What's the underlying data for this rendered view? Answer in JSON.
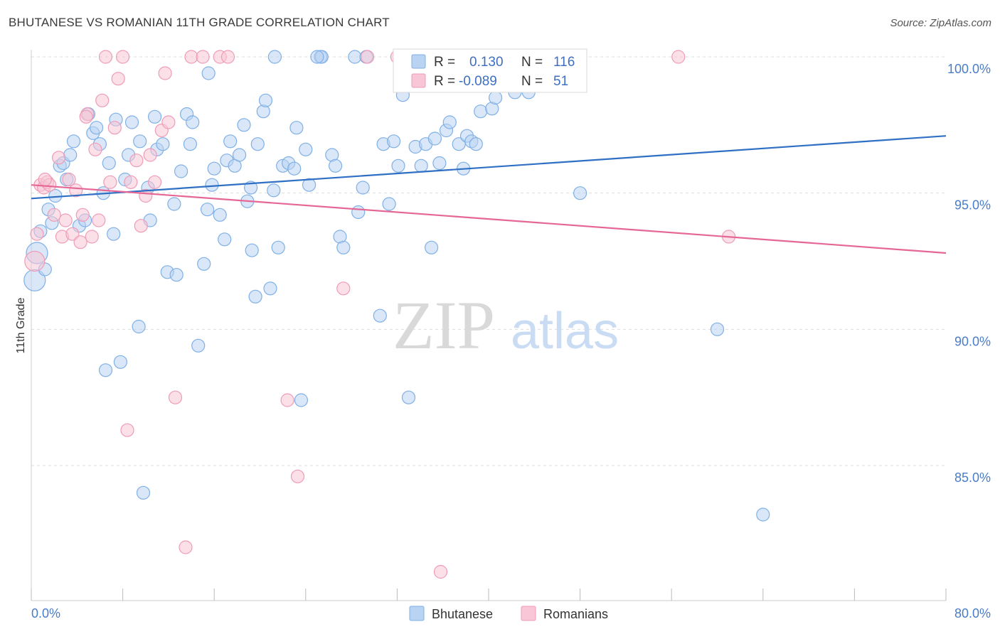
{
  "title": "BHUTANESE VS ROMANIAN 11TH GRADE CORRELATION CHART",
  "source": "Source: ZipAtlas.com",
  "watermark": {
    "zip": "ZIP",
    "atlas": "atlas"
  },
  "colors": {
    "blue": "#7fb0e6",
    "blue_fill": "#b9d3f2",
    "blue_line": "#2f6fc4",
    "pink": "#ef9bb8",
    "pink_fill": "#f8c6d6",
    "pink_line": "#e56795",
    "grid": "#dddddd",
    "tick_text": "#4a7cc7"
  },
  "legend": {
    "row1": {
      "r_label": "R =",
      "r_value": "0.130",
      "n_label": "N =",
      "n_value": "116"
    },
    "row2": {
      "r_label": "R =",
      "r_value": "-0.089",
      "n_label": "N =",
      "n_value": "51"
    }
  },
  "bottom_legend": [
    "Bhutanese",
    "Romanians"
  ],
  "chart_data": {
    "type": "scatter",
    "title": "BHUTANESE VS ROMANIAN 11TH GRADE CORRELATION CHART",
    "xlabel": "",
    "ylabel": "11th Grade",
    "xlim": [
      0,
      80
    ],
    "ylim": [
      80.5,
      101
    ],
    "x_tick_labels": [
      "0.0%",
      "80.0%"
    ],
    "y_ticks": [
      85,
      90,
      95,
      100
    ],
    "y_tick_labels": [
      "85.0%",
      "90.0%",
      "95.0%",
      "100.0%"
    ],
    "grid": true,
    "series": [
      {
        "name": "Bhutanese",
        "r": 0.13,
        "n": 116,
        "trend": [
          [
            0,
            94.8
          ],
          [
            80,
            97.1
          ]
        ],
        "points": [
          [
            0.3,
            91.8
          ],
          [
            0.5,
            92.8
          ],
          [
            0.8,
            93.6
          ],
          [
            1.2,
            92.2
          ],
          [
            1.5,
            94.4
          ],
          [
            1.8,
            93.9
          ],
          [
            2.1,
            94.9
          ],
          [
            2.5,
            96.0
          ],
          [
            2.8,
            96.1
          ],
          [
            3.1,
            95.5
          ],
          [
            3.4,
            96.4
          ],
          [
            3.7,
            96.9
          ],
          [
            4.2,
            93.8
          ],
          [
            4.7,
            94.0
          ],
          [
            5.0,
            97.9
          ],
          [
            5.4,
            97.2
          ],
          [
            5.7,
            97.4
          ],
          [
            6.0,
            96.8
          ],
          [
            6.3,
            95.0
          ],
          [
            6.8,
            96.1
          ],
          [
            7.2,
            93.5
          ],
          [
            7.4,
            97.7
          ],
          [
            8.2,
            95.5
          ],
          [
            8.5,
            96.4
          ],
          [
            8.8,
            97.6
          ],
          [
            9.5,
            96.9
          ],
          [
            10.2,
            95.2
          ],
          [
            10.4,
            94.0
          ],
          [
            10.8,
            97.8
          ],
          [
            11.0,
            96.6
          ],
          [
            11.5,
            96.8
          ],
          [
            11.9,
            92.1
          ],
          [
            12.5,
            94.6
          ],
          [
            12.7,
            92.0
          ],
          [
            13.1,
            95.8
          ],
          [
            13.6,
            97.9
          ],
          [
            13.9,
            96.8
          ],
          [
            14.1,
            97.6
          ],
          [
            14.6,
            89.4
          ],
          [
            15.1,
            92.4
          ],
          [
            15.4,
            94.4
          ],
          [
            15.5,
            99.4
          ],
          [
            15.8,
            95.3
          ],
          [
            16.0,
            95.9
          ],
          [
            16.5,
            94.2
          ],
          [
            16.9,
            93.3
          ],
          [
            17.1,
            96.2
          ],
          [
            17.4,
            96.9
          ],
          [
            17.8,
            96.0
          ],
          [
            18.2,
            96.4
          ],
          [
            18.6,
            97.5
          ],
          [
            18.9,
            94.7
          ],
          [
            19.2,
            95.2
          ],
          [
            19.3,
            92.9
          ],
          [
            19.6,
            91.2
          ],
          [
            19.8,
            96.8
          ],
          [
            20.3,
            98.0
          ],
          [
            20.5,
            98.4
          ],
          [
            20.9,
            91.5
          ],
          [
            21.2,
            95.1
          ],
          [
            21.6,
            93.0
          ],
          [
            22.0,
            96.0
          ],
          [
            22.5,
            96.1
          ],
          [
            23.0,
            95.9
          ],
          [
            23.2,
            97.4
          ],
          [
            23.6,
            87.4
          ],
          [
            24.0,
            96.6
          ],
          [
            24.3,
            95.3
          ],
          [
            25.3,
            100.0
          ],
          [
            25.4,
            100.0
          ],
          [
            26.3,
            96.4
          ],
          [
            26.6,
            96.0
          ],
          [
            27.0,
            93.4
          ],
          [
            27.3,
            93.0
          ],
          [
            28.3,
            100.0
          ],
          [
            28.6,
            94.3
          ],
          [
            29.0,
            95.2
          ],
          [
            30.5,
            90.5
          ],
          [
            30.8,
            96.8
          ],
          [
            31.3,
            94.6
          ],
          [
            31.7,
            96.9
          ],
          [
            32.1,
            96.0
          ],
          [
            32.5,
            98.6
          ],
          [
            33.0,
            87.5
          ],
          [
            33.6,
            96.7
          ],
          [
            34.1,
            96.0
          ],
          [
            34.5,
            96.8
          ],
          [
            35.0,
            93.0
          ],
          [
            35.3,
            97.0
          ],
          [
            35.7,
            96.1
          ],
          [
            36.3,
            97.3
          ],
          [
            36.6,
            97.6
          ],
          [
            37.4,
            96.8
          ],
          [
            37.8,
            95.9
          ],
          [
            38.1,
            97.1
          ],
          [
            38.5,
            96.9
          ],
          [
            38.9,
            96.8
          ],
          [
            39.3,
            98.0
          ],
          [
            40.3,
            98.1
          ],
          [
            40.6,
            98.5
          ],
          [
            41.1,
            99.9
          ],
          [
            42.3,
            98.7
          ],
          [
            42.8,
            100.0
          ],
          [
            43.5,
            98.7
          ],
          [
            44.0,
            99.3
          ],
          [
            45.0,
            100.0
          ],
          [
            48.0,
            95.0
          ],
          [
            60.0,
            90.0
          ],
          [
            64.0,
            83.2
          ],
          [
            9.4,
            90.1
          ],
          [
            9.8,
            84.0
          ],
          [
            7.8,
            88.8
          ],
          [
            6.5,
            88.5
          ],
          [
            21.3,
            100.0
          ],
          [
            25.0,
            100.0
          ],
          [
            29.3,
            100.0
          ]
        ]
      },
      {
        "name": "Romanians",
        "r": -0.089,
        "n": 51,
        "trend": [
          [
            0,
            95.3
          ],
          [
            80,
            92.8
          ]
        ],
        "points": [
          [
            0.3,
            92.5
          ],
          [
            0.5,
            93.5
          ],
          [
            0.8,
            95.3
          ],
          [
            1.1,
            95.2
          ],
          [
            1.4,
            95.4
          ],
          [
            1.6,
            95.3
          ],
          [
            2.0,
            94.2
          ],
          [
            2.4,
            96.3
          ],
          [
            2.7,
            93.4
          ],
          [
            3.0,
            94.0
          ],
          [
            3.3,
            95.5
          ],
          [
            3.6,
            93.5
          ],
          [
            3.9,
            95.1
          ],
          [
            4.3,
            93.2
          ],
          [
            4.5,
            94.2
          ],
          [
            4.9,
            97.9
          ],
          [
            5.3,
            93.4
          ],
          [
            5.6,
            96.6
          ],
          [
            5.9,
            94.0
          ],
          [
            6.2,
            98.4
          ],
          [
            6.5,
            100.0
          ],
          [
            6.9,
            95.4
          ],
          [
            7.3,
            97.4
          ],
          [
            7.6,
            99.2
          ],
          [
            8.0,
            100.0
          ],
          [
            8.4,
            86.3
          ],
          [
            8.7,
            95.4
          ],
          [
            9.2,
            96.2
          ],
          [
            9.6,
            93.8
          ],
          [
            10.0,
            94.9
          ],
          [
            10.4,
            96.4
          ],
          [
            10.8,
            95.4
          ],
          [
            11.4,
            97.3
          ],
          [
            11.7,
            99.4
          ],
          [
            12.0,
            97.6
          ],
          [
            12.6,
            87.5
          ],
          [
            13.5,
            82.0
          ],
          [
            14.0,
            100.0
          ],
          [
            15.0,
            100.0
          ],
          [
            16.5,
            100.0
          ],
          [
            17.2,
            100.0
          ],
          [
            22.4,
            87.4
          ],
          [
            23.3,
            84.6
          ],
          [
            27.3,
            91.5
          ],
          [
            29.4,
            100.0
          ],
          [
            32.0,
            100.0
          ],
          [
            35.8,
            81.1
          ],
          [
            56.6,
            100.0
          ],
          [
            61.0,
            93.4
          ],
          [
            4.8,
            97.8
          ],
          [
            1.2,
            95.5
          ]
        ]
      }
    ]
  }
}
